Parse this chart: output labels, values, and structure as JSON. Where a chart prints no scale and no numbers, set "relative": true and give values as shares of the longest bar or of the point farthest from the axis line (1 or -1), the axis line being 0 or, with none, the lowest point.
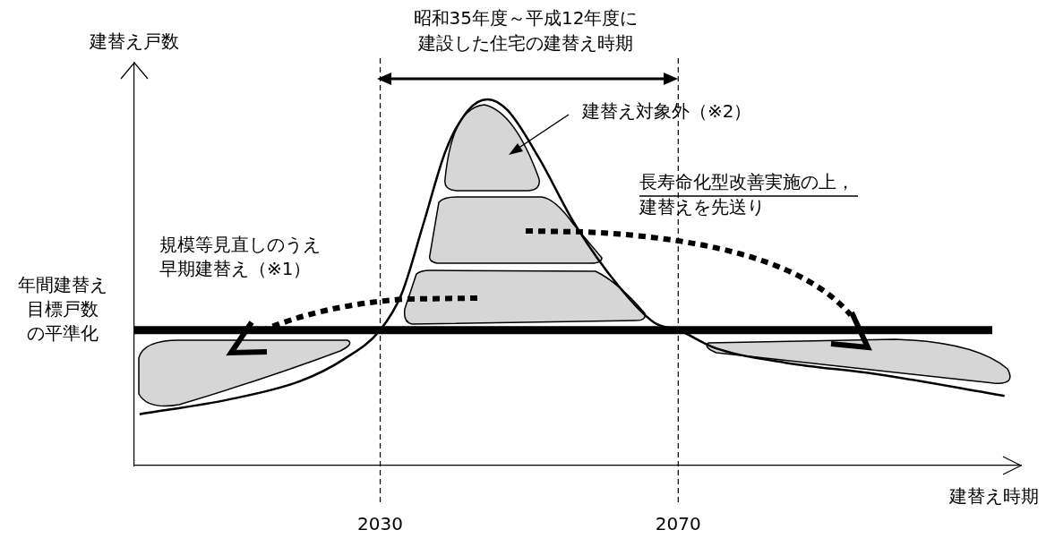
{
  "chart_data": {
    "type": "line",
    "relative": true,
    "xlabel": "建替え時期",
    "ylabel": "建替え戸数",
    "xlim": [
      1997,
      2116
    ],
    "xticks": [
      2030,
      2070
    ],
    "grid": false,
    "marker": "none",
    "line_style": "solid",
    "x": [
      1997.7,
      2009.6,
      2019.2,
      2025.1,
      2030,
      2032.9,
      2035.8,
      2038.8,
      2041.8,
      2044.4,
      2047.1,
      2051.3,
      2056.1,
      2062,
      2066.8,
      2070,
      2075.1,
      2084.6,
      2096.5,
      2113.8
    ],
    "series": [
      {
        "color": "#000000",
        "values": [
          0.14,
          0.18,
          0.23,
          0.29,
          0.37,
          0.47,
          0.66,
          0.86,
          0.97,
          1.0,
          0.97,
          0.84,
          0.66,
          0.49,
          0.39,
          0.37,
          0.32,
          0.28,
          0.25,
          0.19
        ]
      }
    ],
    "ref_lines": [
      {
        "axis": "y",
        "value": 0.37,
        "color": "#000000",
        "line_style": "solid"
      },
      {
        "axis": "x",
        "value": 2030,
        "color": "#000000",
        "line_style": "dashed"
      },
      {
        "axis": "x",
        "value": 2070,
        "color": "#000000",
        "line_style": "dashed"
      }
    ],
    "annotations": [
      "昭和35年度～平成12年度に",
      "建設した住宅の建替え時期",
      "建替え対象外（※2）",
      "長寿命化型改善実施の上，",
      "建替えを先送り",
      "規模等見直しのうえ",
      "早期建替え（※1）",
      "年間建替え",
      "目標戸数",
      "の平準化"
    ]
  }
}
